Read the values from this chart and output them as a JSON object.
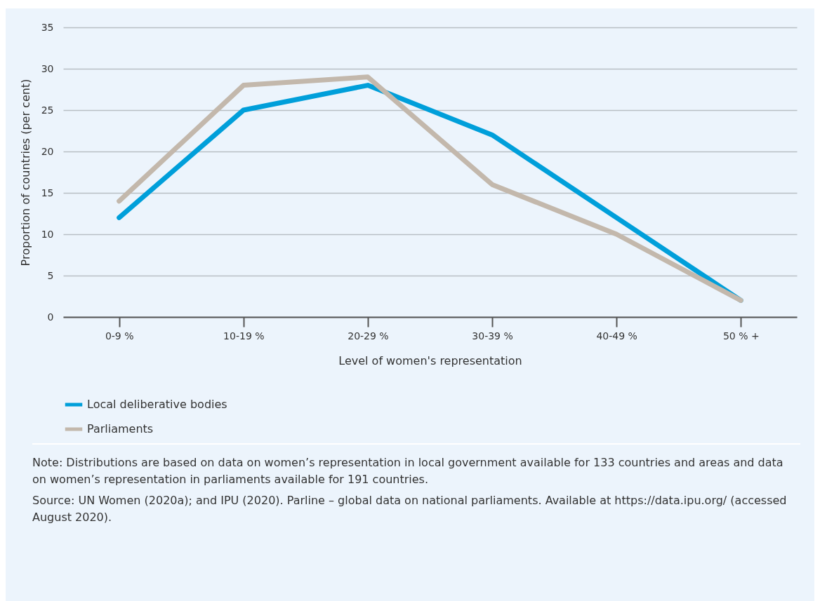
{
  "chart_data": {
    "type": "line",
    "xlabel": "Level of women's representation",
    "ylabel": "Proportion of countries (per cent)",
    "categories": [
      "0-9 %",
      "10-19 %",
      "20-29 %",
      "30-39 %",
      "40-49 %",
      "50 % +"
    ],
    "series": [
      {
        "name": "Local deliberative bodies",
        "color": "#009fda",
        "values": [
          12,
          25,
          28,
          22,
          12,
          2
        ]
      },
      {
        "name": "Parliaments",
        "color": "#c3b8ac",
        "values": [
          14,
          28,
          29,
          16,
          10,
          2
        ]
      }
    ],
    "ylim": [
      0,
      35
    ],
    "yticks": [
      0,
      5,
      10,
      15,
      20,
      25,
      30,
      35
    ],
    "grid": "y",
    "legend": "bottom",
    "marker": "none",
    "line_style": "solid",
    "annotations": [
      "Note: Distributions are based on data on women’s representation in local government available for 133 countries and areas and data on women’s representation in parliaments available for 191 countries.",
      "Source: UN Women (2020a); and IPU (2020). Parline – global data on national parliaments. Available at https://data.ipu.org/ (accessed August 2020)."
    ]
  }
}
